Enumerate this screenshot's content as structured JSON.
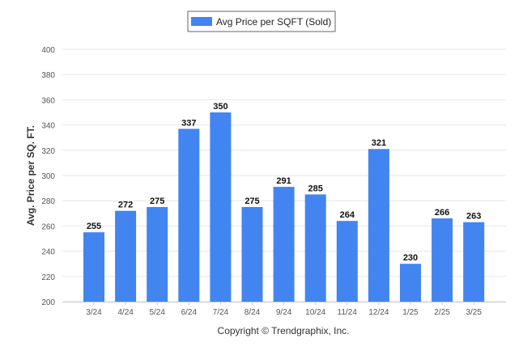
{
  "chart_data": {
    "type": "bar",
    "categories": [
      "3/24",
      "4/24",
      "5/24",
      "6/24",
      "7/24",
      "8/24",
      "9/24",
      "10/24",
      "11/24",
      "12/24",
      "1/25",
      "2/25",
      "3/25"
    ],
    "series": [
      {
        "name": "Avg Price per SQFT (Sold)",
        "values": [
          255,
          272,
          275,
          337,
          350,
          275,
          291,
          285,
          264,
          321,
          230,
          266,
          263
        ]
      }
    ],
    "ylabel": "Avg. Price per SQ. FT.",
    "xlabel": "",
    "ylim": [
      200,
      400
    ],
    "yticks": [
      200,
      220,
      240,
      260,
      280,
      300,
      320,
      340,
      360,
      380,
      400
    ],
    "grid": true,
    "legend_position": "top-center",
    "bar_color": "#4285f0",
    "data_labels": true
  },
  "footer": {
    "credit": "Copyright © Trendgraphix, Inc."
  }
}
